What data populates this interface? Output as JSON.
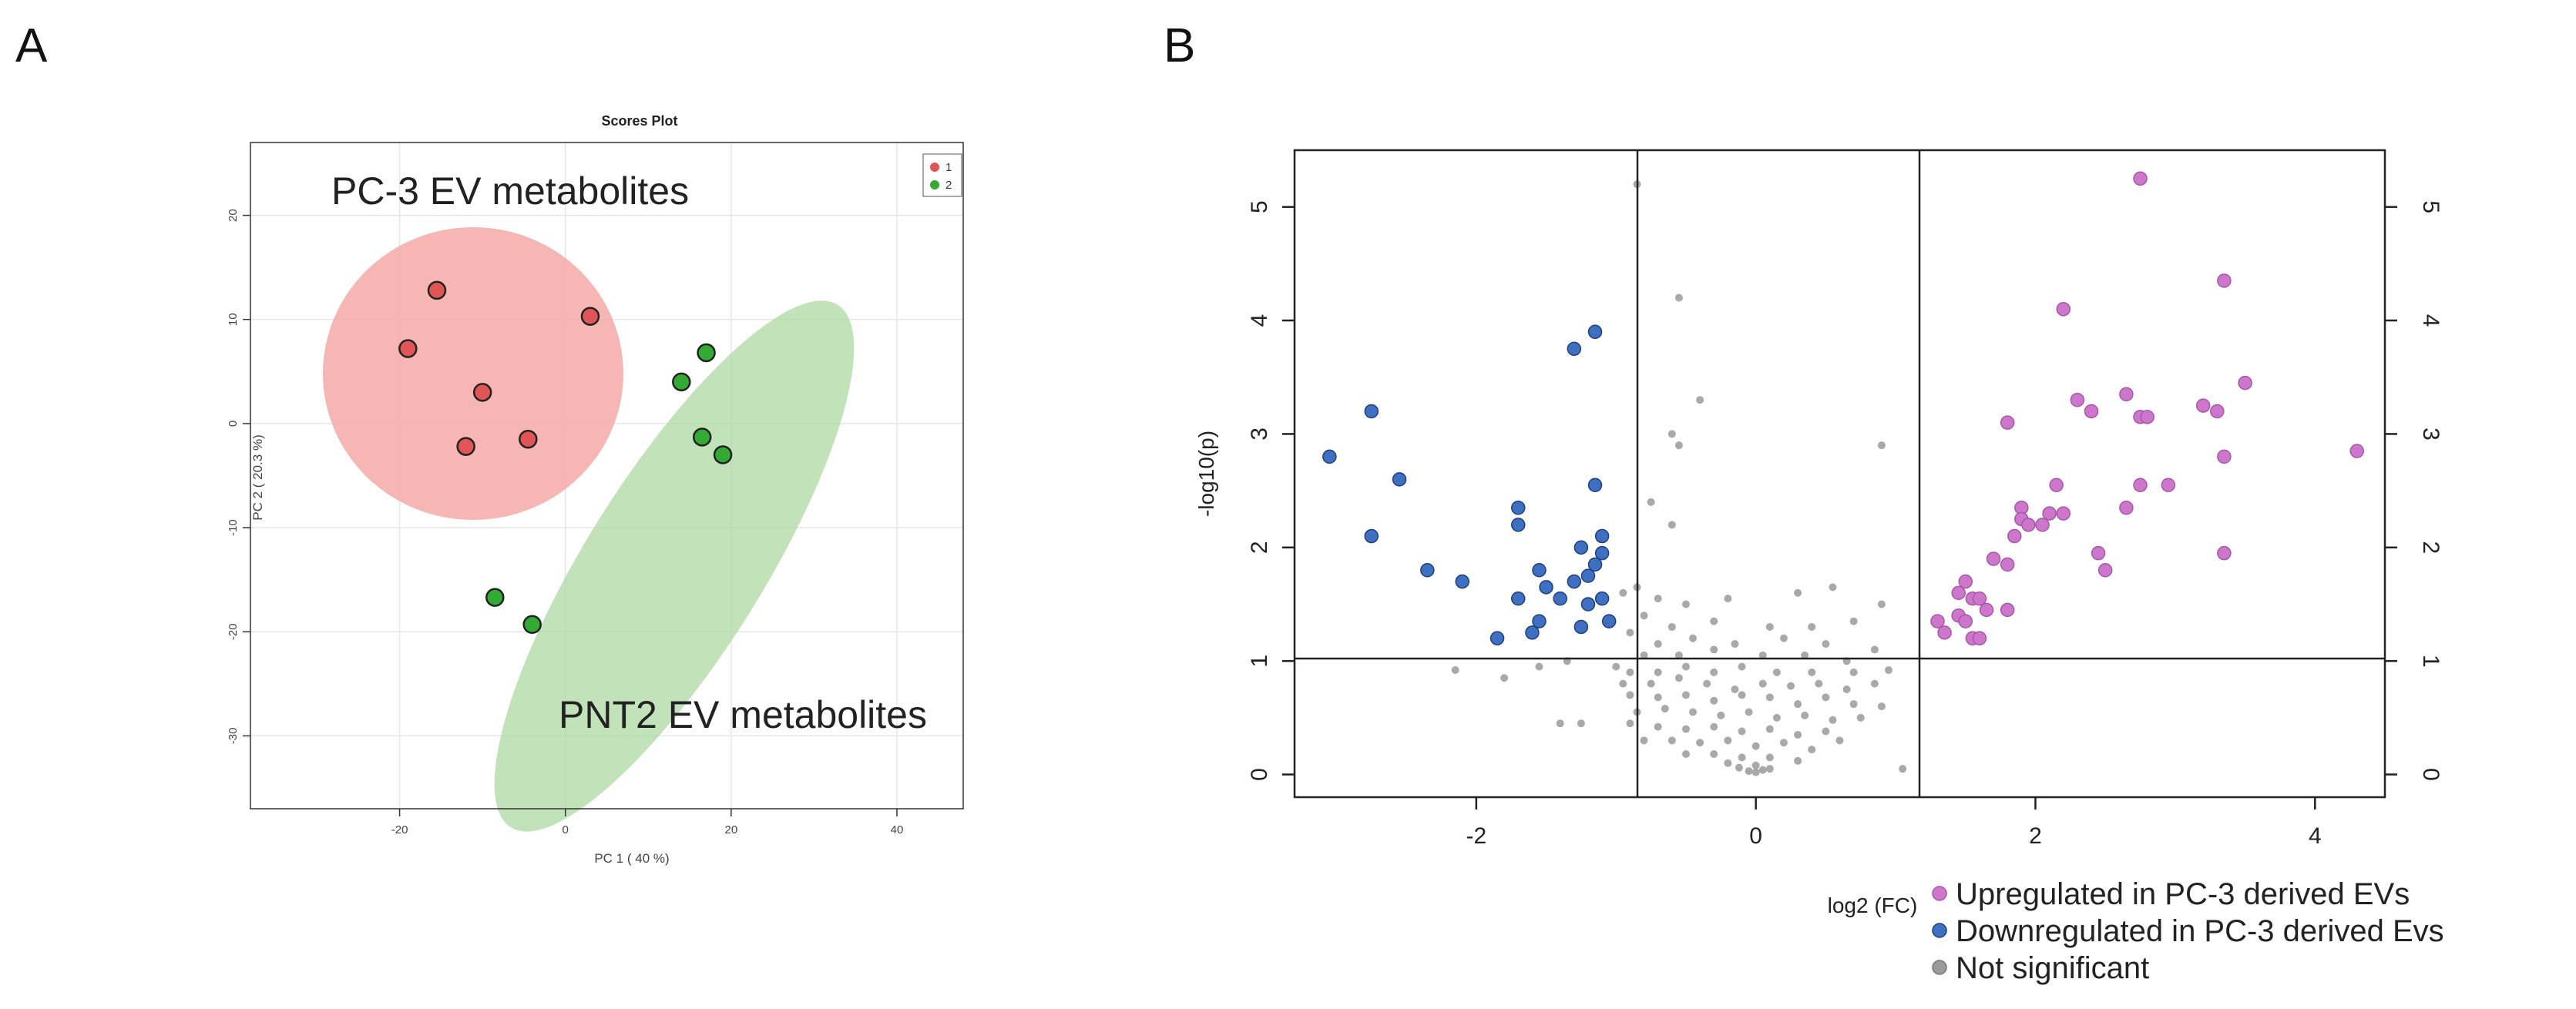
{
  "panels": {
    "a_letter": "A",
    "b_letter": "B"
  },
  "chart_data": [
    {
      "type": "scatter",
      "title": "Scores Plot",
      "xlabel": "PC 1 ( 40 %)",
      "ylabel": "PC 2 ( 20.3 %)",
      "xlim": [
        -38,
        48
      ],
      "ylim": [
        -37,
        27
      ],
      "xticks": [
        -20,
        0,
        20,
        40
      ],
      "yticks": [
        -30,
        -20,
        -10,
        0,
        10,
        20
      ],
      "grid": true,
      "legend": {
        "position": "top-right",
        "entries": [
          {
            "label": "1",
            "color": "#e05555"
          },
          {
            "label": "2",
            "color": "#33aa33"
          }
        ]
      },
      "annotations": [
        "PC-3 EV metabolites",
        "PNT2 EV metabolites"
      ],
      "ellipse_colors": {
        "group1": "#f4a9a6",
        "group2": "#a8d79b"
      },
      "series": [
        {
          "name": "1",
          "color": "#e05555",
          "points": [
            [
              -19,
              7.2
            ],
            [
              -15.5,
              12.8
            ],
            [
              -10,
              3
            ],
            [
              -12,
              -2.2
            ],
            [
              -4.5,
              -1.5
            ],
            [
              3,
              10.3
            ]
          ]
        },
        {
          "name": "2",
          "color": "#33aa33",
          "points": [
            [
              14,
              4
            ],
            [
              17,
              6.8
            ],
            [
              16.5,
              -1.3
            ],
            [
              19,
              -3
            ],
            [
              -8.5,
              -16.7
            ],
            [
              -4,
              -19.3
            ]
          ]
        }
      ]
    },
    {
      "type": "scatter",
      "title": "",
      "xlabel": "log2 (FC)",
      "ylabel": "-log10(p)",
      "xlim": [
        -3.3,
        4.5
      ],
      "ylim": [
        -0.2,
        5.5
      ],
      "xticks": [
        -2,
        0,
        2,
        4
      ],
      "yticks": [
        0,
        1,
        2,
        3,
        4,
        5
      ],
      "thresholds": {
        "x": [
          -1,
          1
        ],
        "y": 1
      },
      "legend": {
        "position": "bottom-right",
        "entries": [
          {
            "label": "Upregulated in PC-3 derived EVs",
            "color": "#cc77cc"
          },
          {
            "label": "Downregulated in PC-3 derived Evs",
            "color": "#3f6fc0"
          },
          {
            "label": "Not significant",
            "color": "#9a9a9a"
          }
        ]
      },
      "series": [
        {
          "name": "Upregulated in PC-3 derived EVs",
          "color": "#cc77cc",
          "points": [
            [
              2.75,
              5.25
            ],
            [
              3.35,
              4.35
            ],
            [
              2.2,
              4.1
            ],
            [
              3.5,
              3.45
            ],
            [
              3.2,
              3.25
            ],
            [
              2.3,
              3.3
            ],
            [
              2.4,
              3.2
            ],
            [
              2.65,
              3.35
            ],
            [
              2.75,
              3.15
            ],
            [
              2.8,
              3.15
            ],
            [
              3.3,
              3.2
            ],
            [
              4.3,
              2.85
            ],
            [
              1.8,
              3.1
            ],
            [
              3.35,
              2.8
            ],
            [
              2.15,
              2.55
            ],
            [
              2.75,
              2.55
            ],
            [
              2.95,
              2.55
            ],
            [
              2.65,
              2.35
            ],
            [
              1.9,
              2.35
            ],
            [
              2.1,
              2.3
            ],
            [
              2.2,
              2.3
            ],
            [
              1.9,
              2.25
            ],
            [
              1.95,
              2.2
            ],
            [
              2.05,
              2.2
            ],
            [
              1.85,
              2.1
            ],
            [
              2.45,
              1.95
            ],
            [
              3.35,
              1.95
            ],
            [
              1.7,
              1.9
            ],
            [
              1.8,
              1.85
            ],
            [
              2.5,
              1.8
            ],
            [
              1.5,
              1.7
            ],
            [
              1.45,
              1.6
            ],
            [
              1.55,
              1.55
            ],
            [
              1.6,
              1.55
            ],
            [
              1.8,
              1.45
            ],
            [
              1.65,
              1.45
            ],
            [
              1.45,
              1.4
            ],
            [
              1.3,
              1.35
            ],
            [
              1.5,
              1.35
            ],
            [
              1.35,
              1.25
            ],
            [
              1.55,
              1.2
            ],
            [
              1.6,
              1.2
            ]
          ]
        },
        {
          "name": "Downregulated in PC-3 derived Evs",
          "color": "#3f6fc0",
          "points": [
            [
              -1.15,
              3.9
            ],
            [
              -1.3,
              3.75
            ],
            [
              -2.75,
              3.2
            ],
            [
              -3.05,
              2.8
            ],
            [
              -2.55,
              2.6
            ],
            [
              -1.15,
              2.55
            ],
            [
              -1.7,
              2.35
            ],
            [
              -1.7,
              2.2
            ],
            [
              -2.75,
              2.1
            ],
            [
              -1.1,
              2.1
            ],
            [
              -1.25,
              2.0
            ],
            [
              -1.1,
              1.95
            ],
            [
              -1.15,
              1.85
            ],
            [
              -2.35,
              1.8
            ],
            [
              -1.55,
              1.8
            ],
            [
              -1.2,
              1.75
            ],
            [
              -2.1,
              1.7
            ],
            [
              -1.3,
              1.7
            ],
            [
              -1.5,
              1.65
            ],
            [
              -1.7,
              1.55
            ],
            [
              -1.4,
              1.55
            ],
            [
              -1.2,
              1.5
            ],
            [
              -1.1,
              1.55
            ],
            [
              -1.55,
              1.35
            ],
            [
              -1.05,
              1.35
            ],
            [
              -1.25,
              1.3
            ],
            [
              -1.6,
              1.25
            ],
            [
              -1.85,
              1.2
            ]
          ]
        },
        {
          "name": "Not significant",
          "color": "#9a9a9a",
          "points": [
            [
              -0.85,
              5.2
            ],
            [
              -0.55,
              4.2
            ],
            [
              -0.4,
              3.3
            ],
            [
              -0.6,
              3.0
            ],
            [
              -0.55,
              2.9
            ],
            [
              0.9,
              2.9
            ],
            [
              -0.75,
              2.4
            ],
            [
              -0.6,
              2.2
            ],
            [
              -0.85,
              1.65
            ],
            [
              -0.95,
              1.6
            ],
            [
              -0.7,
              1.55
            ],
            [
              -0.5,
              1.5
            ],
            [
              -0.2,
              1.55
            ],
            [
              0.3,
              1.6
            ],
            [
              0.55,
              1.65
            ],
            [
              0.9,
              1.5
            ],
            [
              -0.8,
              1.4
            ],
            [
              -0.6,
              1.3
            ],
            [
              -0.3,
              1.35
            ],
            [
              0.1,
              1.3
            ],
            [
              0.4,
              1.3
            ],
            [
              0.7,
              1.35
            ],
            [
              -0.9,
              1.25
            ],
            [
              -0.7,
              1.15
            ],
            [
              -0.45,
              1.2
            ],
            [
              -0.15,
              1.15
            ],
            [
              0.2,
              1.2
            ],
            [
              0.5,
              1.15
            ],
            [
              0.85,
              1.1
            ],
            [
              -0.8,
              1.05
            ],
            [
              -0.55,
              1.05
            ],
            [
              -0.3,
              1.1
            ],
            [
              0.05,
              1.05
            ],
            [
              0.35,
              1.05
            ],
            [
              0.65,
              1.0
            ],
            [
              -1.35,
              1.0
            ],
            [
              -1.55,
              0.95
            ],
            [
              -2.15,
              0.92
            ],
            [
              -1.8,
              0.85
            ],
            [
              -1.0,
              0.95
            ],
            [
              -0.9,
              0.9
            ],
            [
              -0.7,
              0.9
            ],
            [
              -0.5,
              0.95
            ],
            [
              -0.3,
              0.9
            ],
            [
              -0.1,
              0.95
            ],
            [
              0.15,
              0.9
            ],
            [
              0.4,
              0.9
            ],
            [
              0.7,
              0.9
            ],
            [
              0.95,
              0.92
            ],
            [
              -0.95,
              0.8
            ],
            [
              -0.75,
              0.8
            ],
            [
              -0.55,
              0.85
            ],
            [
              -0.35,
              0.8
            ],
            [
              -0.15,
              0.75
            ],
            [
              0.05,
              0.8
            ],
            [
              0.25,
              0.78
            ],
            [
              0.45,
              0.8
            ],
            [
              0.65,
              0.75
            ],
            [
              0.85,
              0.8
            ],
            [
              -0.9,
              0.7
            ],
            [
              -0.7,
              0.68
            ],
            [
              -0.5,
              0.7
            ],
            [
              -0.3,
              0.65
            ],
            [
              -0.1,
              0.7
            ],
            [
              0.1,
              0.68
            ],
            [
              0.3,
              0.62
            ],
            [
              0.5,
              0.68
            ],
            [
              0.7,
              0.62
            ],
            [
              0.9,
              0.6
            ],
            [
              -0.85,
              0.55
            ],
            [
              -0.65,
              0.58
            ],
            [
              -0.45,
              0.55
            ],
            [
              -0.25,
              0.52
            ],
            [
              -0.05,
              0.55
            ],
            [
              0.15,
              0.5
            ],
            [
              0.35,
              0.52
            ],
            [
              0.55,
              0.48
            ],
            [
              0.75,
              0.5
            ],
            [
              -1.4,
              0.45
            ],
            [
              -1.25,
              0.45
            ],
            [
              -0.9,
              0.45
            ],
            [
              -0.7,
              0.42
            ],
            [
              -0.5,
              0.4
            ],
            [
              -0.3,
              0.42
            ],
            [
              -0.1,
              0.38
            ],
            [
              0.1,
              0.4
            ],
            [
              0.3,
              0.35
            ],
            [
              0.5,
              0.38
            ],
            [
              -0.8,
              0.3
            ],
            [
              -0.6,
              0.3
            ],
            [
              -0.4,
              0.28
            ],
            [
              -0.2,
              0.3
            ],
            [
              0.0,
              0.25
            ],
            [
              0.2,
              0.28
            ],
            [
              0.4,
              0.22
            ],
            [
              0.6,
              0.3
            ],
            [
              -0.5,
              0.18
            ],
            [
              -0.3,
              0.18
            ],
            [
              -0.1,
              0.15
            ],
            [
              0.1,
              0.15
            ],
            [
              0.3,
              0.12
            ],
            [
              -0.2,
              0.1
            ],
            [
              0.0,
              0.08
            ],
            [
              0.05,
              0.04
            ],
            [
              -0.05,
              0.03
            ],
            [
              0.1,
              0.05
            ],
            [
              -0.12,
              0.06
            ],
            [
              0.0,
              0.02
            ],
            [
              1.05,
              0.05
            ]
          ]
        }
      ]
    }
  ]
}
